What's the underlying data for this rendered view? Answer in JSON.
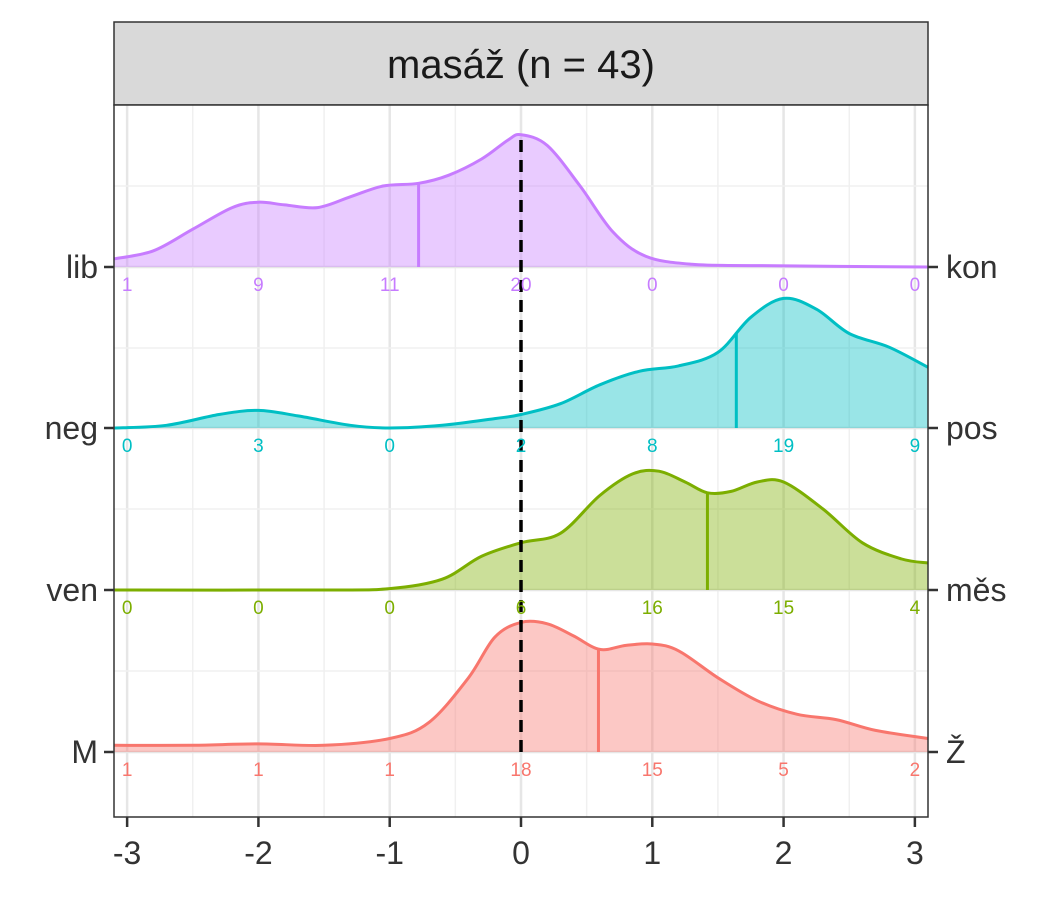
{
  "chart_data": {
    "type": "ridgeline-density",
    "title": "masáž (n = 43)",
    "xlim": [
      -3.1,
      3.1
    ],
    "x_ticks": [
      -3,
      -2,
      -1,
      0,
      1,
      2,
      3
    ],
    "x_tick_labels": [
      "-3",
      "-2",
      "-1",
      "0",
      "1",
      "2",
      "3"
    ],
    "reference_line_x": 0,
    "grid": true,
    "count_positions": [
      -3,
      -2,
      -1,
      0,
      1,
      2,
      3
    ],
    "series": [
      {
        "left_label": "lib",
        "right_label": "kon",
        "color": "#C77CFF",
        "median": -0.78,
        "counts": [
          "1",
          "9",
          "11",
          "20",
          "0",
          "0",
          "0"
        ],
        "density": [
          [
            -3.1,
            0.06
          ],
          [
            -2.8,
            0.12
          ],
          [
            -2.5,
            0.28
          ],
          [
            -2.2,
            0.44
          ],
          [
            -2.0,
            0.48
          ],
          [
            -1.8,
            0.46
          ],
          [
            -1.55,
            0.44
          ],
          [
            -1.3,
            0.52
          ],
          [
            -1.05,
            0.6
          ],
          [
            -0.78,
            0.62
          ],
          [
            -0.55,
            0.68
          ],
          [
            -0.3,
            0.8
          ],
          [
            -0.1,
            0.94
          ],
          [
            0.0,
            0.98
          ],
          [
            0.2,
            0.9
          ],
          [
            0.45,
            0.6
          ],
          [
            0.7,
            0.26
          ],
          [
            0.95,
            0.08
          ],
          [
            1.3,
            0.02
          ],
          [
            1.8,
            0.01
          ],
          [
            3.1,
            0.0
          ]
        ]
      },
      {
        "left_label": "neg",
        "right_label": "pos",
        "color": "#00BFC4",
        "median": 1.64,
        "counts": [
          "0",
          "3",
          "0",
          "2",
          "8",
          "19",
          "9"
        ],
        "density": [
          [
            -3.1,
            0.0
          ],
          [
            -2.7,
            0.02
          ],
          [
            -2.3,
            0.1
          ],
          [
            -2.0,
            0.13
          ],
          [
            -1.7,
            0.09
          ],
          [
            -1.3,
            0.02
          ],
          [
            -1.0,
            0.0
          ],
          [
            -0.6,
            0.02
          ],
          [
            -0.2,
            0.07
          ],
          [
            0.0,
            0.1
          ],
          [
            0.3,
            0.18
          ],
          [
            0.6,
            0.32
          ],
          [
            0.9,
            0.42
          ],
          [
            1.2,
            0.46
          ],
          [
            1.5,
            0.56
          ],
          [
            1.75,
            0.82
          ],
          [
            2.0,
            0.96
          ],
          [
            2.25,
            0.88
          ],
          [
            2.5,
            0.7
          ],
          [
            2.8,
            0.6
          ],
          [
            3.1,
            0.45
          ]
        ]
      },
      {
        "left_label": "ven",
        "right_label": "měs",
        "color": "#7CAE00",
        "median": 1.42,
        "counts": [
          "0",
          "0",
          "0",
          "6",
          "16",
          "15",
          "4"
        ],
        "density": [
          [
            -3.1,
            0.0
          ],
          [
            -1.5,
            0.0
          ],
          [
            -1.0,
            0.01
          ],
          [
            -0.6,
            0.08
          ],
          [
            -0.3,
            0.25
          ],
          [
            0.0,
            0.35
          ],
          [
            0.3,
            0.42
          ],
          [
            0.6,
            0.7
          ],
          [
            0.85,
            0.86
          ],
          [
            1.05,
            0.88
          ],
          [
            1.25,
            0.8
          ],
          [
            1.42,
            0.72
          ],
          [
            1.6,
            0.73
          ],
          [
            1.8,
            0.8
          ],
          [
            2.0,
            0.8
          ],
          [
            2.3,
            0.6
          ],
          [
            2.6,
            0.35
          ],
          [
            2.9,
            0.23
          ],
          [
            3.1,
            0.2
          ]
        ]
      },
      {
        "left_label": "M",
        "right_label": "Ž",
        "color": "#F8766D",
        "median": 0.59,
        "counts": [
          "1",
          "1",
          "1",
          "18",
          "15",
          "5",
          "2"
        ],
        "density": [
          [
            -3.1,
            0.05
          ],
          [
            -2.5,
            0.05
          ],
          [
            -2.0,
            0.06
          ],
          [
            -1.5,
            0.05
          ],
          [
            -1.0,
            0.1
          ],
          [
            -0.7,
            0.22
          ],
          [
            -0.4,
            0.55
          ],
          [
            -0.2,
            0.85
          ],
          [
            0.0,
            0.96
          ],
          [
            0.2,
            0.95
          ],
          [
            0.4,
            0.86
          ],
          [
            0.6,
            0.76
          ],
          [
            0.8,
            0.79
          ],
          [
            1.0,
            0.8
          ],
          [
            1.2,
            0.75
          ],
          [
            1.5,
            0.55
          ],
          [
            1.8,
            0.38
          ],
          [
            2.1,
            0.28
          ],
          [
            2.4,
            0.24
          ],
          [
            2.7,
            0.16
          ],
          [
            3.1,
            0.1
          ]
        ]
      }
    ]
  }
}
